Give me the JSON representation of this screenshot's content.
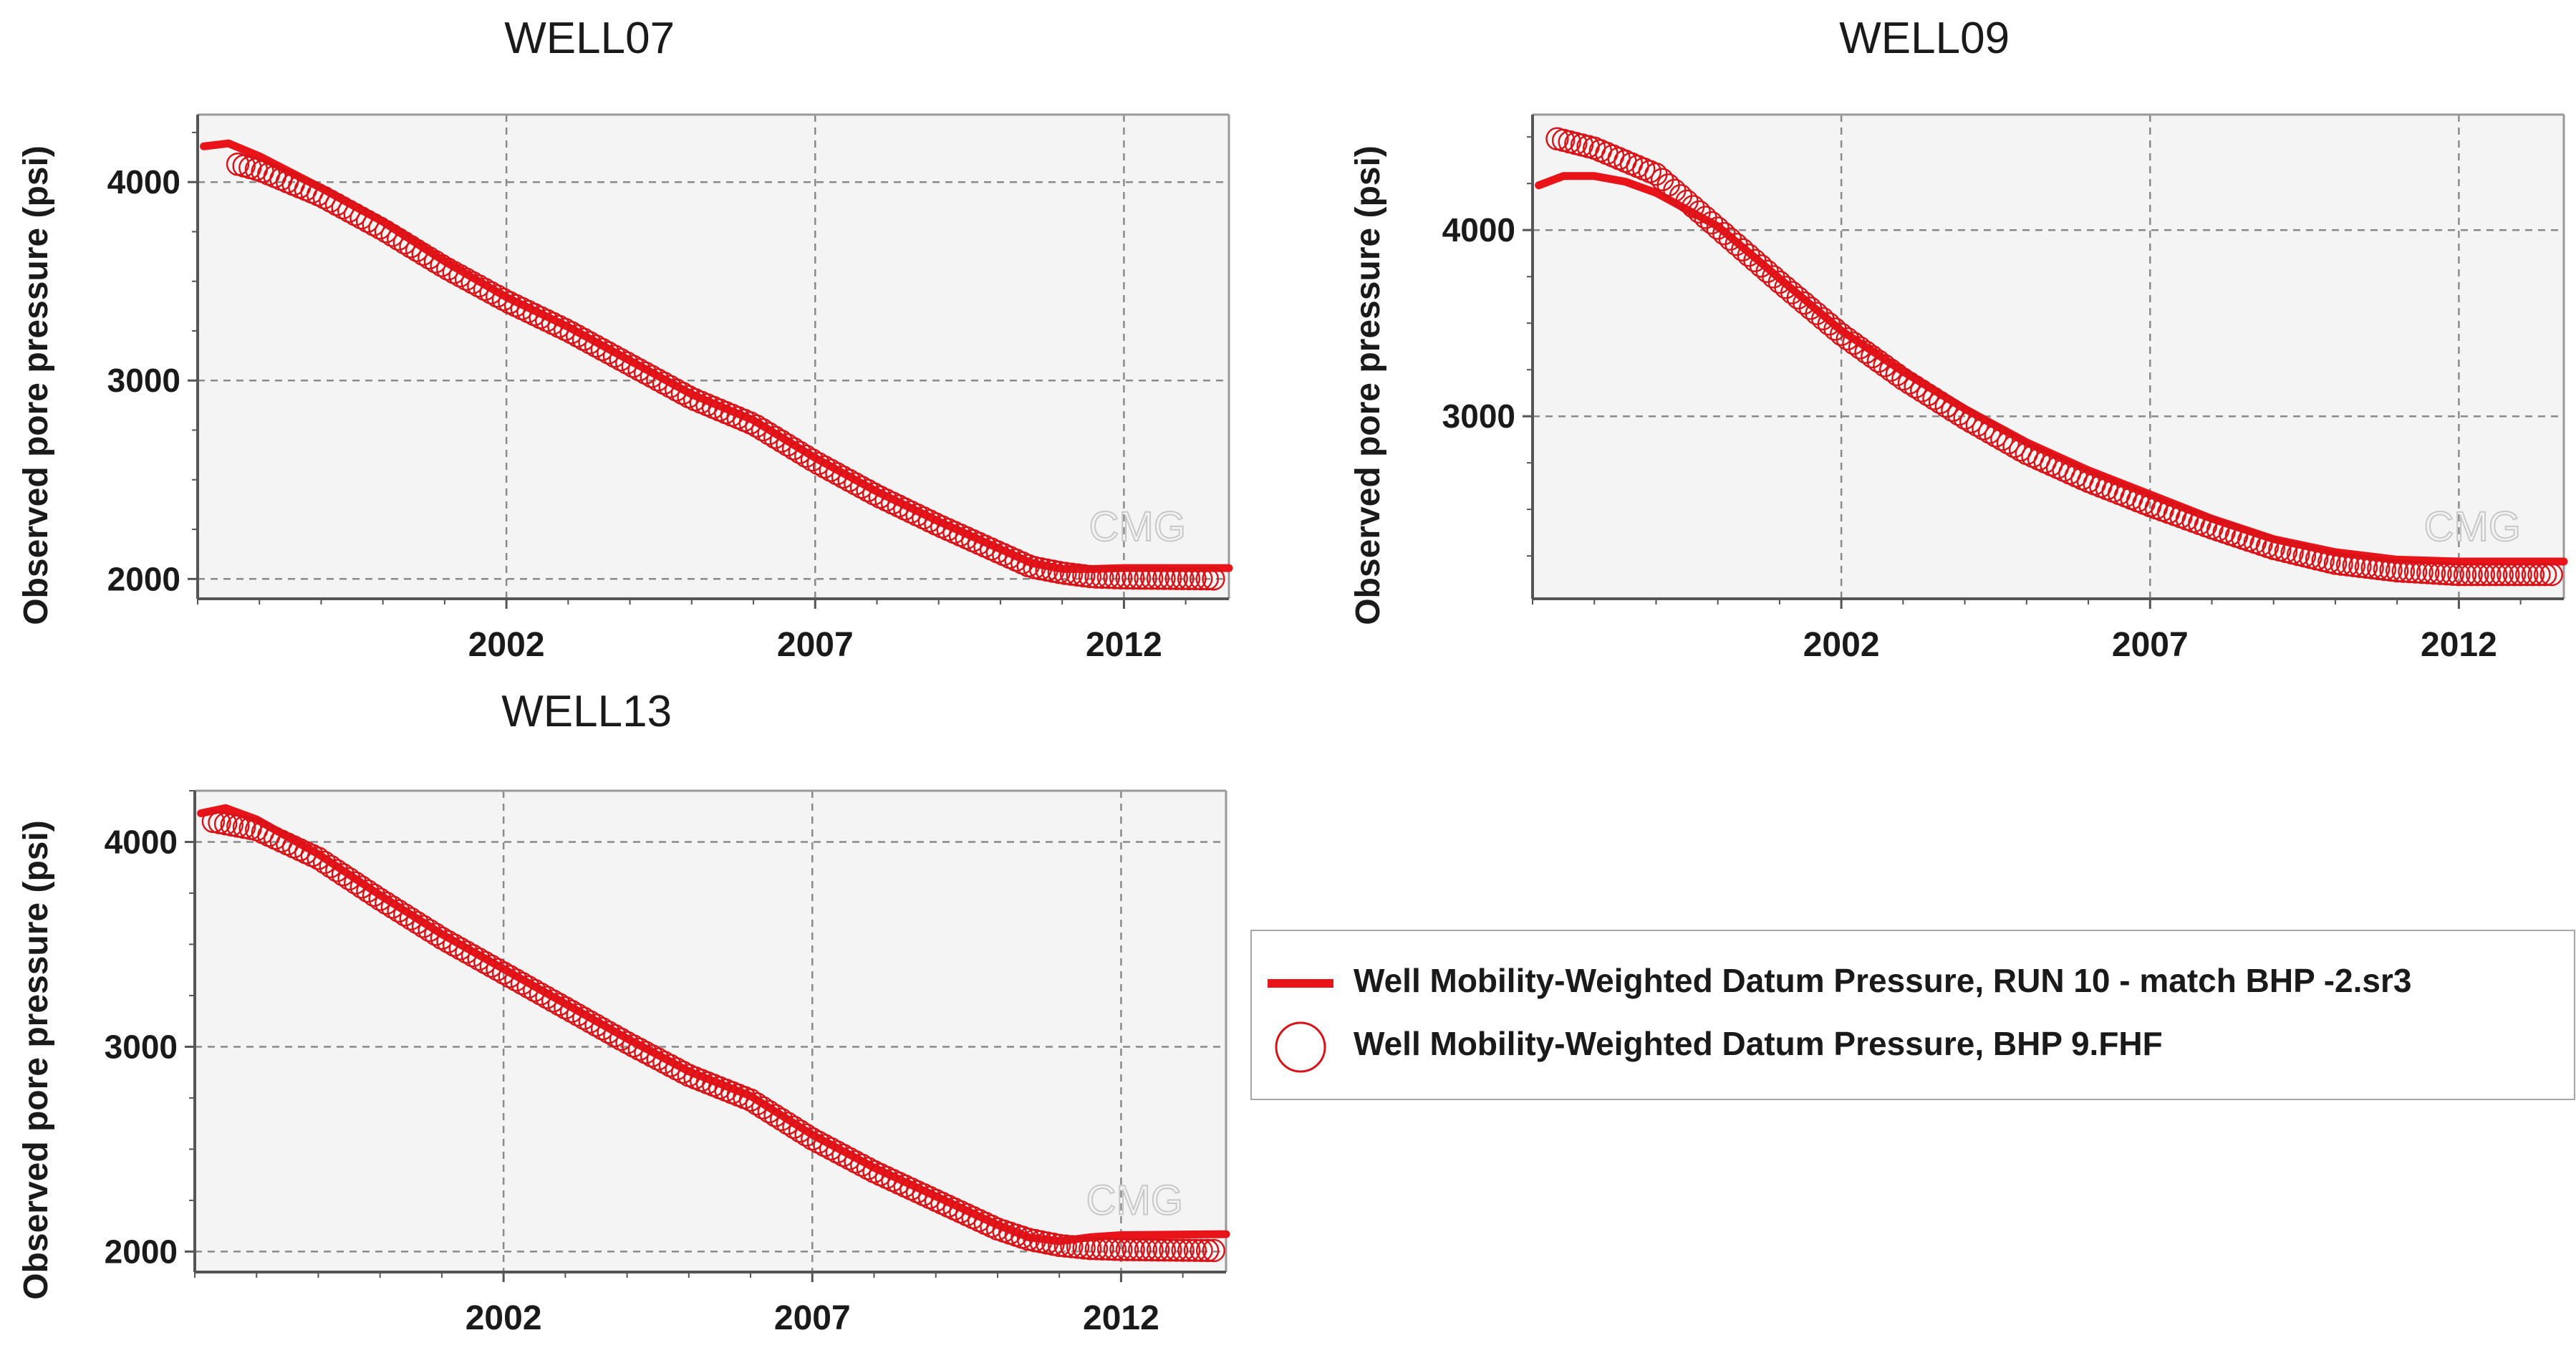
{
  "colors": {
    "series": "#e8141a",
    "obs_stroke": "#d81318",
    "plot_bg": "#f4f4f4",
    "grid": "#8a8a8a",
    "axis": "#555555"
  },
  "chart_data": [
    {
      "type": "line",
      "title": "WELL07",
      "ylabel": "Observed pore pressure (psi)",
      "xlabel": "",
      "x_ticks": [
        2002,
        2007,
        2012
      ],
      "y_ticks": [
        2000,
        3000,
        4000
      ],
      "xlim": [
        1997.0,
        2013.7
      ],
      "ylim": [
        1900,
        4340
      ],
      "watermark": "CMG",
      "series": [
        {
          "name": "Well Mobility-Weighted Datum Pressure, RUN 10 - match BHP -2.sr3",
          "kind": "line",
          "x": [
            1997.1,
            1997.5,
            1998.0,
            1999.0,
            2000.0,
            2001.0,
            2002.0,
            2003.0,
            2004.0,
            2005.0,
            2006.0,
            2007.0,
            2008.0,
            2009.0,
            2010.0,
            2010.5,
            2011.0,
            2011.5,
            2012.0,
            2012.5,
            2013.0,
            2013.7
          ],
          "y": [
            4180,
            4195,
            4130,
            3970,
            3800,
            3600,
            3420,
            3270,
            3100,
            2930,
            2800,
            2610,
            2440,
            2290,
            2150,
            2080,
            2050,
            2050,
            2055,
            2055,
            2055,
            2055
          ]
        },
        {
          "name": "Well Mobility-Weighted Datum Pressure, BHP 9.FHF",
          "kind": "scatter",
          "x_start": 1997.65,
          "x_step": 0.1,
          "anchors_x": [
            1997.65,
            1998.0,
            1999.0,
            2000.0,
            2001.0,
            2002.0,
            2003.0,
            2004.0,
            2005.0,
            2006.0,
            2007.0,
            2008.0,
            2009.0,
            2010.0,
            2010.5,
            2011.0,
            2011.5,
            2012.0,
            2013.5
          ],
          "anchors_y": [
            4090,
            4060,
            3930,
            3760,
            3570,
            3400,
            3250,
            3080,
            2910,
            2780,
            2590,
            2420,
            2270,
            2130,
            2060,
            2030,
            2010,
            2005,
            2000
          ]
        }
      ]
    },
    {
      "type": "line",
      "title": "WELL09",
      "ylabel": "Observed pore pressure (psi)",
      "xlabel": "",
      "x_ticks": [
        2002,
        2007,
        2012
      ],
      "y_ticks": [
        3000,
        4000
      ],
      "xlim": [
        1997.0,
        2013.7
      ],
      "ylim": [
        2020,
        4620
      ],
      "watermark": "CMG",
      "series": [
        {
          "name": "Well Mobility-Weighted Datum Pressure, RUN 10 - match BHP -2.sr3",
          "kind": "line",
          "x": [
            1997.1,
            1997.5,
            1998.0,
            1998.5,
            1999.0,
            2000.0,
            2001.0,
            2002.0,
            2003.0,
            2004.0,
            2005.0,
            2006.0,
            2007.0,
            2008.0,
            2009.0,
            2010.0,
            2011.0,
            2012.0,
            2013.7
          ],
          "y": [
            4240,
            4290,
            4290,
            4260,
            4200,
            4020,
            3740,
            3460,
            3240,
            3040,
            2860,
            2710,
            2580,
            2450,
            2340,
            2270,
            2230,
            2220,
            2220
          ]
        },
        {
          "name": "Well Mobility-Weighted Datum Pressure, BHP 9.FHF",
          "kind": "scatter",
          "x_start": 1997.4,
          "x_step": 0.1,
          "anchors_x": [
            1997.4,
            1998.0,
            1999.0,
            2000.0,
            2001.0,
            2002.0,
            2003.0,
            2004.0,
            2005.0,
            2006.0,
            2007.0,
            2008.0,
            2009.0,
            2010.0,
            2011.0,
            2012.0,
            2013.5
          ],
          "anchors_y": [
            4490,
            4440,
            4300,
            4010,
            3720,
            3440,
            3200,
            2990,
            2800,
            2650,
            2520,
            2400,
            2290,
            2210,
            2170,
            2150,
            2150
          ]
        }
      ]
    },
    {
      "type": "line",
      "title": "WELL13",
      "ylabel": "Observed pore pressure (psi)",
      "xlabel": "",
      "x_ticks": [
        2002,
        2007,
        2012
      ],
      "y_ticks": [
        2000,
        3000,
        4000
      ],
      "xlim": [
        1997.0,
        2013.7
      ],
      "ylim": [
        1900,
        4250
      ],
      "watermark": "CMG",
      "series": [
        {
          "name": "Well Mobility-Weighted Datum Pressure, RUN 10 - match BHP -2.sr3",
          "kind": "line",
          "x": [
            1997.1,
            1997.5,
            1998.0,
            1999.0,
            2000.0,
            2001.0,
            2002.0,
            2003.0,
            2004.0,
            2005.0,
            2006.0,
            2007.0,
            2008.0,
            2009.0,
            2010.0,
            2010.5,
            2011.0,
            2011.5,
            2012.0,
            2013.7
          ],
          "y": [
            4140,
            4165,
            4110,
            3940,
            3740,
            3550,
            3380,
            3210,
            3040,
            2880,
            2760,
            2570,
            2410,
            2270,
            2130,
            2070,
            2050,
            2070,
            2080,
            2085
          ]
        },
        {
          "name": "Well Mobility-Weighted Datum Pressure, BHP 9.FHF",
          "kind": "scatter",
          "x_start": 1997.3,
          "x_step": 0.1,
          "anchors_x": [
            1997.3,
            1998.0,
            1999.0,
            2000.0,
            2001.0,
            2002.0,
            2003.0,
            2004.0,
            2005.0,
            2006.0,
            2007.0,
            2008.0,
            2009.0,
            2010.0,
            2010.5,
            2011.0,
            2011.5,
            2012.0,
            2013.5
          ],
          "anchors_y": [
            4100,
            4060,
            3920,
            3720,
            3530,
            3360,
            3190,
            3020,
            2860,
            2740,
            2550,
            2390,
            2250,
            2110,
            2060,
            2030,
            2015,
            2010,
            2005
          ]
        }
      ]
    }
  ],
  "legend": {
    "items": [
      {
        "label": "Well Mobility-Weighted Datum Pressure, RUN 10 - match BHP -2.sr3",
        "symbol": "line"
      },
      {
        "label": "Well Mobility-Weighted Datum Pressure, BHP 9.FHF",
        "symbol": "circle"
      }
    ]
  }
}
